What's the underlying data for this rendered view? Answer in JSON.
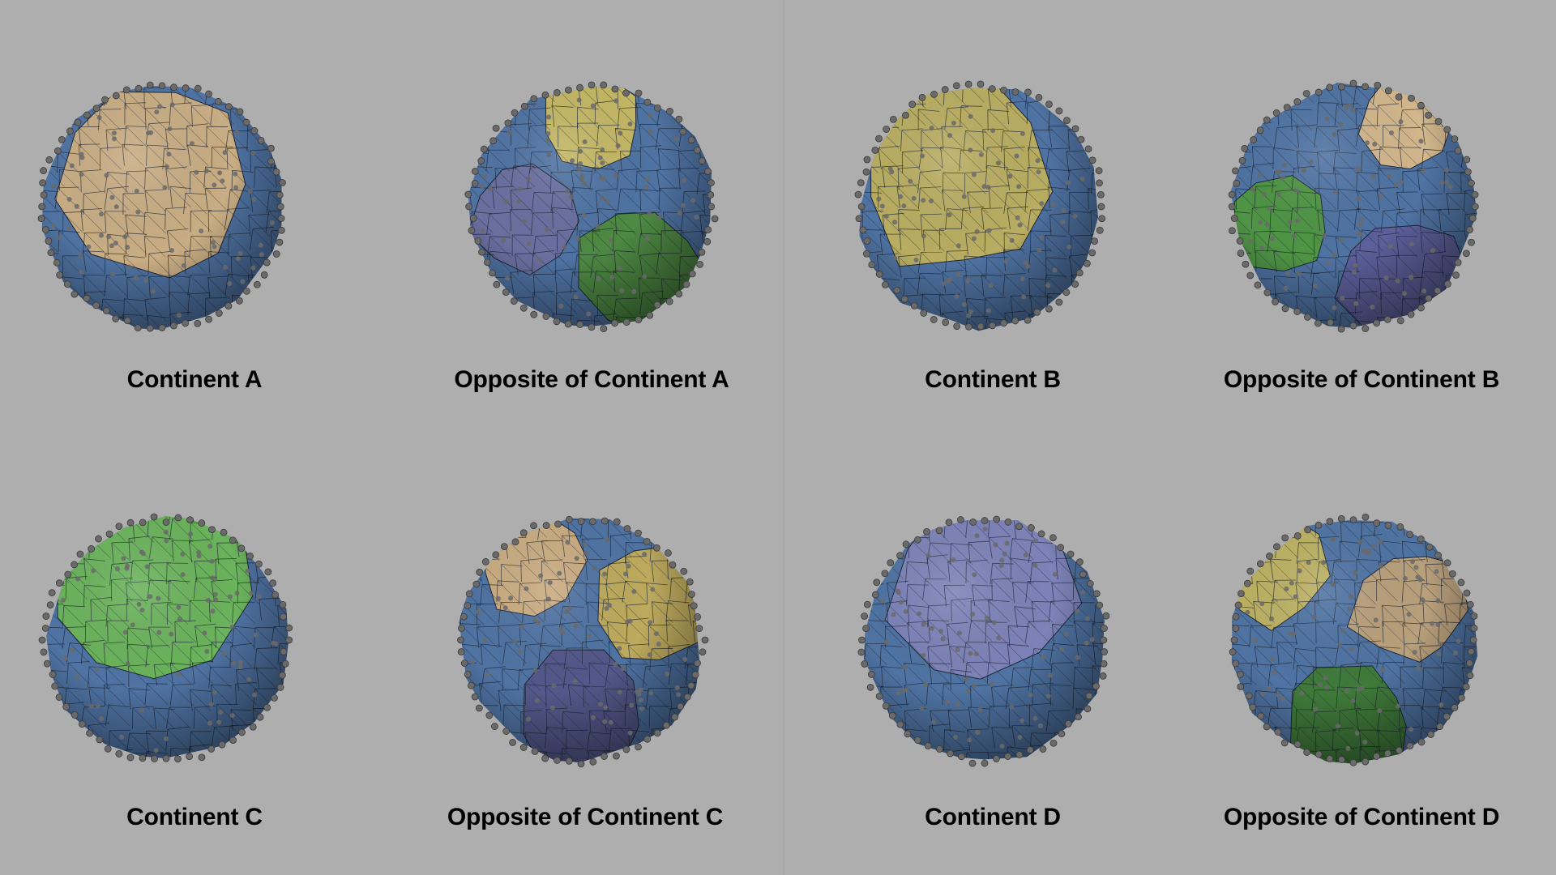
{
  "colors": {
    "background": "#aeaeae",
    "ocean": "#4f73a3",
    "edge": "#1e2633",
    "node": "#6a6a6a"
  },
  "panels": [
    {
      "caption": "Continent A",
      "patches": [
        {
          "color": "#c9ad84"
        }
      ]
    },
    {
      "caption": "Opposite of Continent A",
      "patches": [
        {
          "color": "#c4b765"
        },
        {
          "color": "#6a6fa0"
        },
        {
          "color": "#4e8a43"
        }
      ]
    },
    {
      "caption": "Continent B",
      "patches": [
        {
          "color": "#b9ad62"
        }
      ]
    },
    {
      "caption": "Opposite of Continent B",
      "patches": [
        {
          "color": "#d2b68c"
        },
        {
          "color": "#4f9545"
        },
        {
          "color": "#5d609b"
        }
      ]
    },
    {
      "caption": "Continent C",
      "patches": [
        {
          "color": "#6bb35c"
        }
      ]
    },
    {
      "caption": "Opposite of Continent C",
      "patches": [
        {
          "color": "#c9ab80"
        },
        {
          "color": "#bdaa5e"
        },
        {
          "color": "#53588a"
        }
      ]
    },
    {
      "caption": "Continent D",
      "patches": [
        {
          "color": "#7d83b8"
        }
      ]
    },
    {
      "caption": "Opposite of Continent D",
      "patches": [
        {
          "color": "#bcb163"
        },
        {
          "color": "#b9a07c"
        },
        {
          "color": "#3f7a3a"
        }
      ]
    }
  ]
}
